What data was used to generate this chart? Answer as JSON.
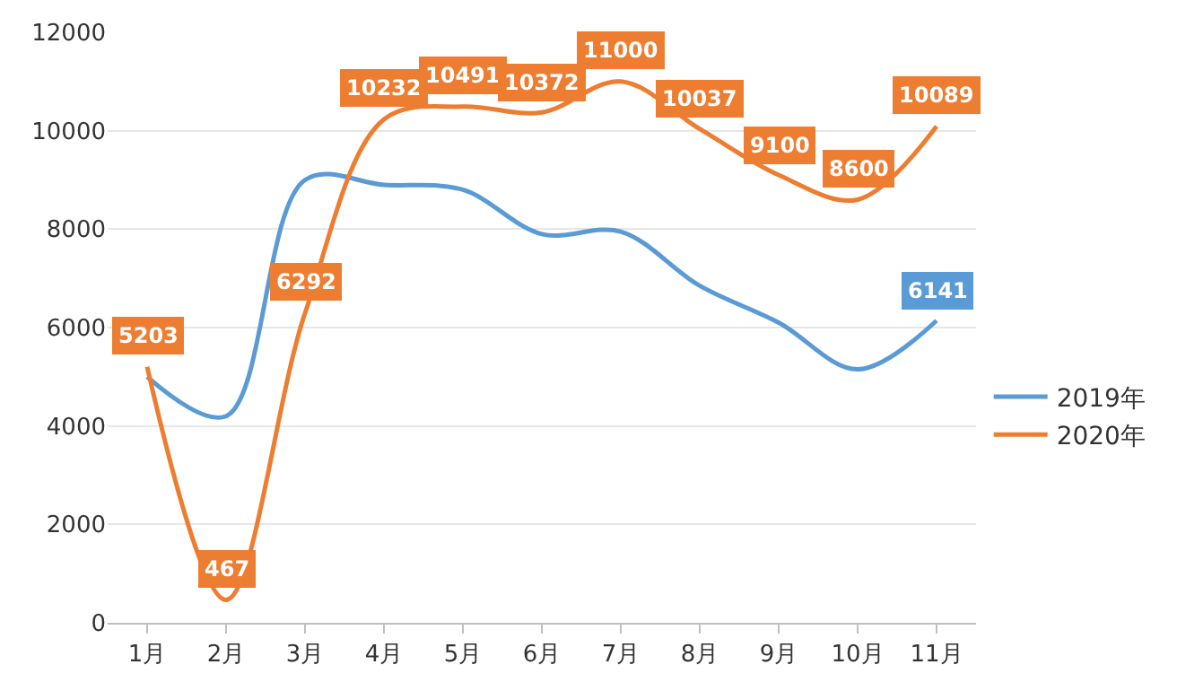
{
  "chart_data": {
    "type": "line",
    "categories": [
      "1月",
      "2月",
      "3月",
      "4月",
      "5月",
      "6月",
      "7月",
      "8月",
      "9月",
      "10月",
      "11月"
    ],
    "series": [
      {
        "name": "2019年",
        "color": "#5b9bd5",
        "values": [
          5000,
          4200,
          9000,
          8900,
          8800,
          7900,
          7950,
          6850,
          6100,
          5150,
          6141
        ],
        "value_labels": [
          null,
          null,
          null,
          null,
          null,
          null,
          null,
          null,
          null,
          null,
          "6141"
        ]
      },
      {
        "name": "2020年",
        "color": "#ed7d31",
        "values": [
          5203,
          467,
          6292,
          10232,
          10491,
          10372,
          11000,
          10037,
          9100,
          8600,
          10089
        ],
        "value_labels": [
          "5203",
          "467",
          "6292",
          "10232",
          "10491",
          "10372",
          "11000",
          "10037",
          "9100",
          "8600",
          "10089"
        ]
      }
    ],
    "ylim": [
      0,
      12000
    ],
    "yticks": [
      0,
      2000,
      4000,
      6000,
      8000,
      10000,
      12000
    ],
    "grid": "y",
    "legend": "right",
    "marker": "none",
    "line_style": "solid"
  }
}
